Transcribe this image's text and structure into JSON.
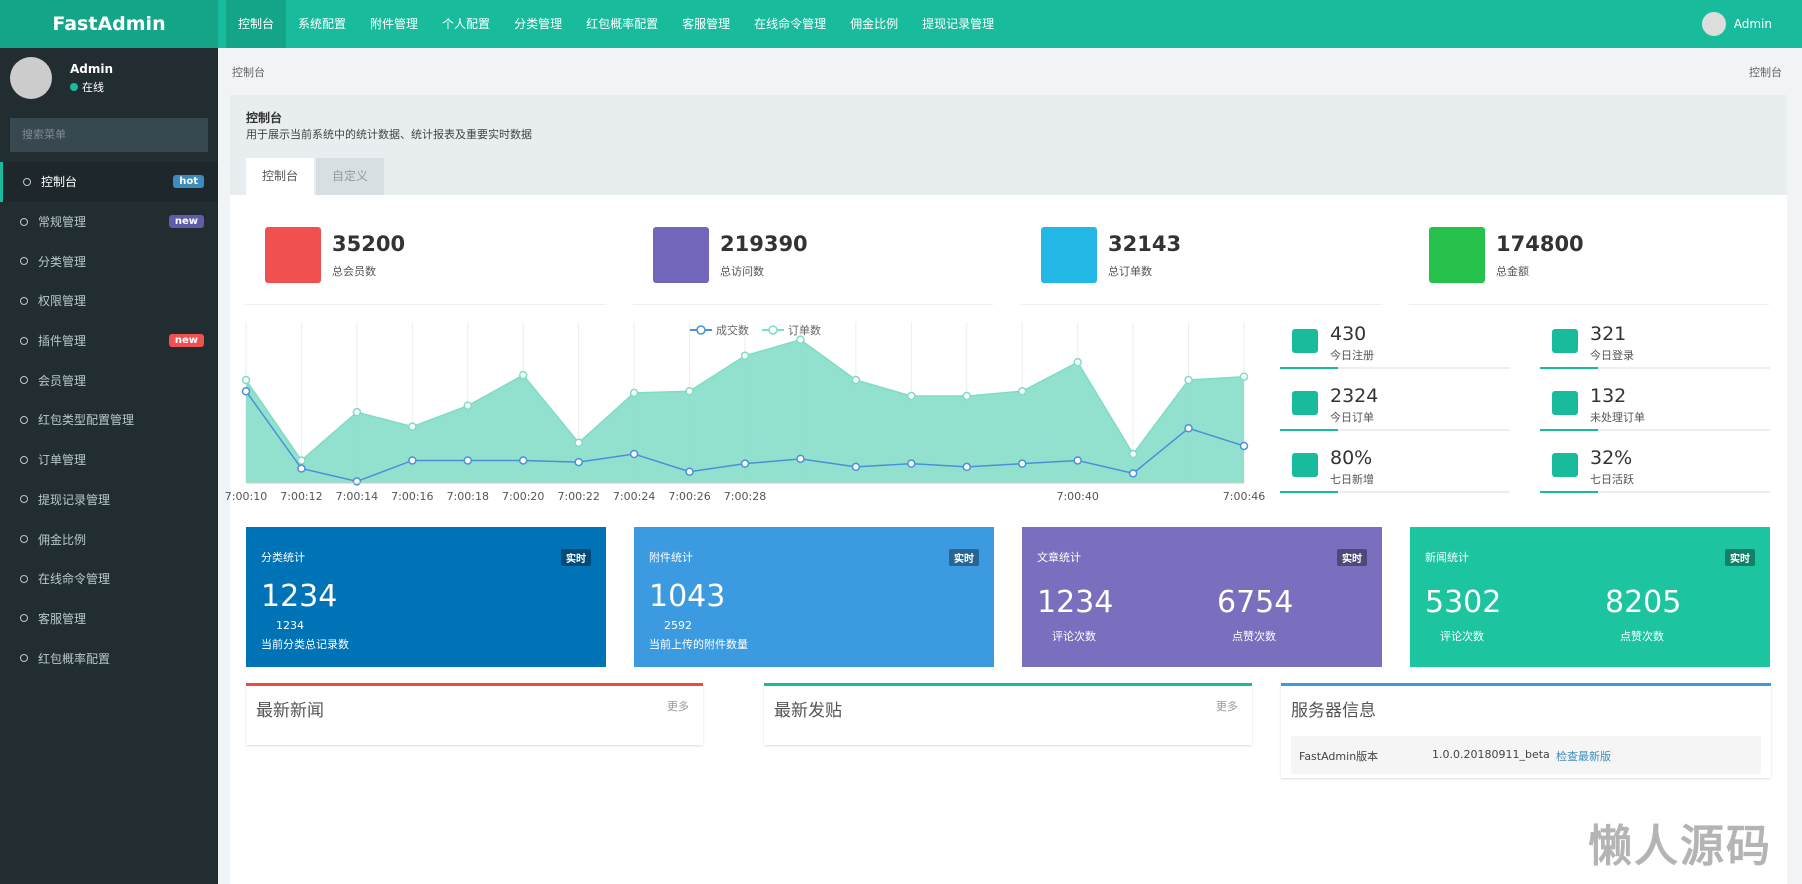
{
  "header": {
    "brand": "FastAdmin",
    "nav": [
      "控制台",
      "系统配置",
      "附件管理",
      "个人配置",
      "分类管理",
      "红包概率配置",
      "客服管理",
      "在线命令管理",
      "佣金比例",
      "提现记录管理"
    ],
    "user": "Admin"
  },
  "sidebar": {
    "user": "Admin",
    "status": "在线",
    "search": "搜索菜单",
    "menu": [
      {
        "label": "控制台",
        "badge": "hot"
      },
      {
        "label": "常规管理",
        "badge": "new"
      },
      {
        "label": "分类管理"
      },
      {
        "label": "权限管理"
      },
      {
        "label": "插件管理",
        "badge": "new"
      },
      {
        "label": "会员管理"
      },
      {
        "label": "红包类型配置管理"
      },
      {
        "label": "订单管理"
      },
      {
        "label": "提现记录管理"
      },
      {
        "label": "佣金比例"
      },
      {
        "label": "在线命令管理"
      },
      {
        "label": "客服管理"
      },
      {
        "label": "红包概率配置"
      }
    ]
  },
  "breadcrumb": {
    "left": "控制台",
    "right": "控制台"
  },
  "panel": {
    "title": "控制台",
    "description": "用于展示当前系统中的统计数据、统计报表及重要实时数据",
    "tabs": [
      "控制台",
      "自定义"
    ]
  },
  "stats": [
    {
      "value": "35200",
      "label": "总会员数",
      "color": "#f05050"
    },
    {
      "value": "219390",
      "label": "总访问数",
      "color": "#7266ba"
    },
    {
      "value": "32143",
      "label": "总订单数",
      "color": "#23b7e5"
    },
    {
      "value": "174800",
      "label": "总金额",
      "color": "#27c24c"
    }
  ],
  "chart_data": {
    "type": "line",
    "categories": [
      "7:00:10",
      "7:00:12",
      "7:00:14",
      "7:00:16",
      "7:00:18",
      "7:00:20",
      "7:00:22",
      "7:00:24",
      "7:00:26",
      "7:00:28",
      null,
      null,
      null,
      null,
      null,
      "7:00:40",
      null,
      null,
      "7:00:46"
    ],
    "ylim": [
      0,
      100
    ],
    "series": [
      {
        "name": "成交数",
        "color": "#4a90d9",
        "values": [
          57,
          9,
          1,
          14,
          14,
          14,
          13,
          18,
          7,
          12,
          15,
          10,
          12,
          10,
          12,
          14,
          6,
          34,
          23
        ]
      },
      {
        "name": "订单数",
        "color": "#7fdcc5",
        "area": true,
        "values": [
          64,
          14,
          44,
          35,
          48,
          67,
          25,
          56,
          57,
          79,
          89,
          64,
          54,
          54,
          57,
          75,
          18,
          64,
          66
        ]
      }
    ]
  },
  "mini_stats": [
    {
      "value": "430",
      "label": "今日注册"
    },
    {
      "value": "321",
      "label": "今日登录"
    },
    {
      "value": "2324",
      "label": "今日订单"
    },
    {
      "value": "132",
      "label": "未处理订单"
    },
    {
      "value": "80%",
      "label": "七日新增"
    },
    {
      "value": "32%",
      "label": "七日活跃"
    }
  ],
  "boxes": [
    {
      "title": "分类统计",
      "tag": "实时",
      "value": "1234",
      "sub": "1234",
      "note": "当前分类总记录数",
      "color": "#0073b7"
    },
    {
      "title": "附件统计",
      "tag": "实时",
      "value": "1043",
      "sub": "2592",
      "note": "当前上传的附件数量",
      "color": "#3c9be0"
    },
    {
      "title": "文章统计",
      "tag": "实时",
      "a": "1234",
      "a_label": "评论次数",
      "b": "6754",
      "b_label": "点赞次数",
      "color": "#7a6fbe"
    },
    {
      "title": "新闻统计",
      "tag": "实时",
      "a": "5302",
      "a_label": "评论次数",
      "b": "8205",
      "b_label": "点赞次数",
      "color": "#1cc59f"
    }
  ],
  "bottom": {
    "news": {
      "title": "最新新闻",
      "more": "更多"
    },
    "posts": {
      "title": "最新发贴",
      "more": "更多"
    },
    "server": {
      "title": "服务器信息",
      "key": "FastAdmin版本",
      "version": "1.0.0.20180911_beta",
      "check": "检查最新版"
    }
  },
  "watermark": "懒人源码"
}
